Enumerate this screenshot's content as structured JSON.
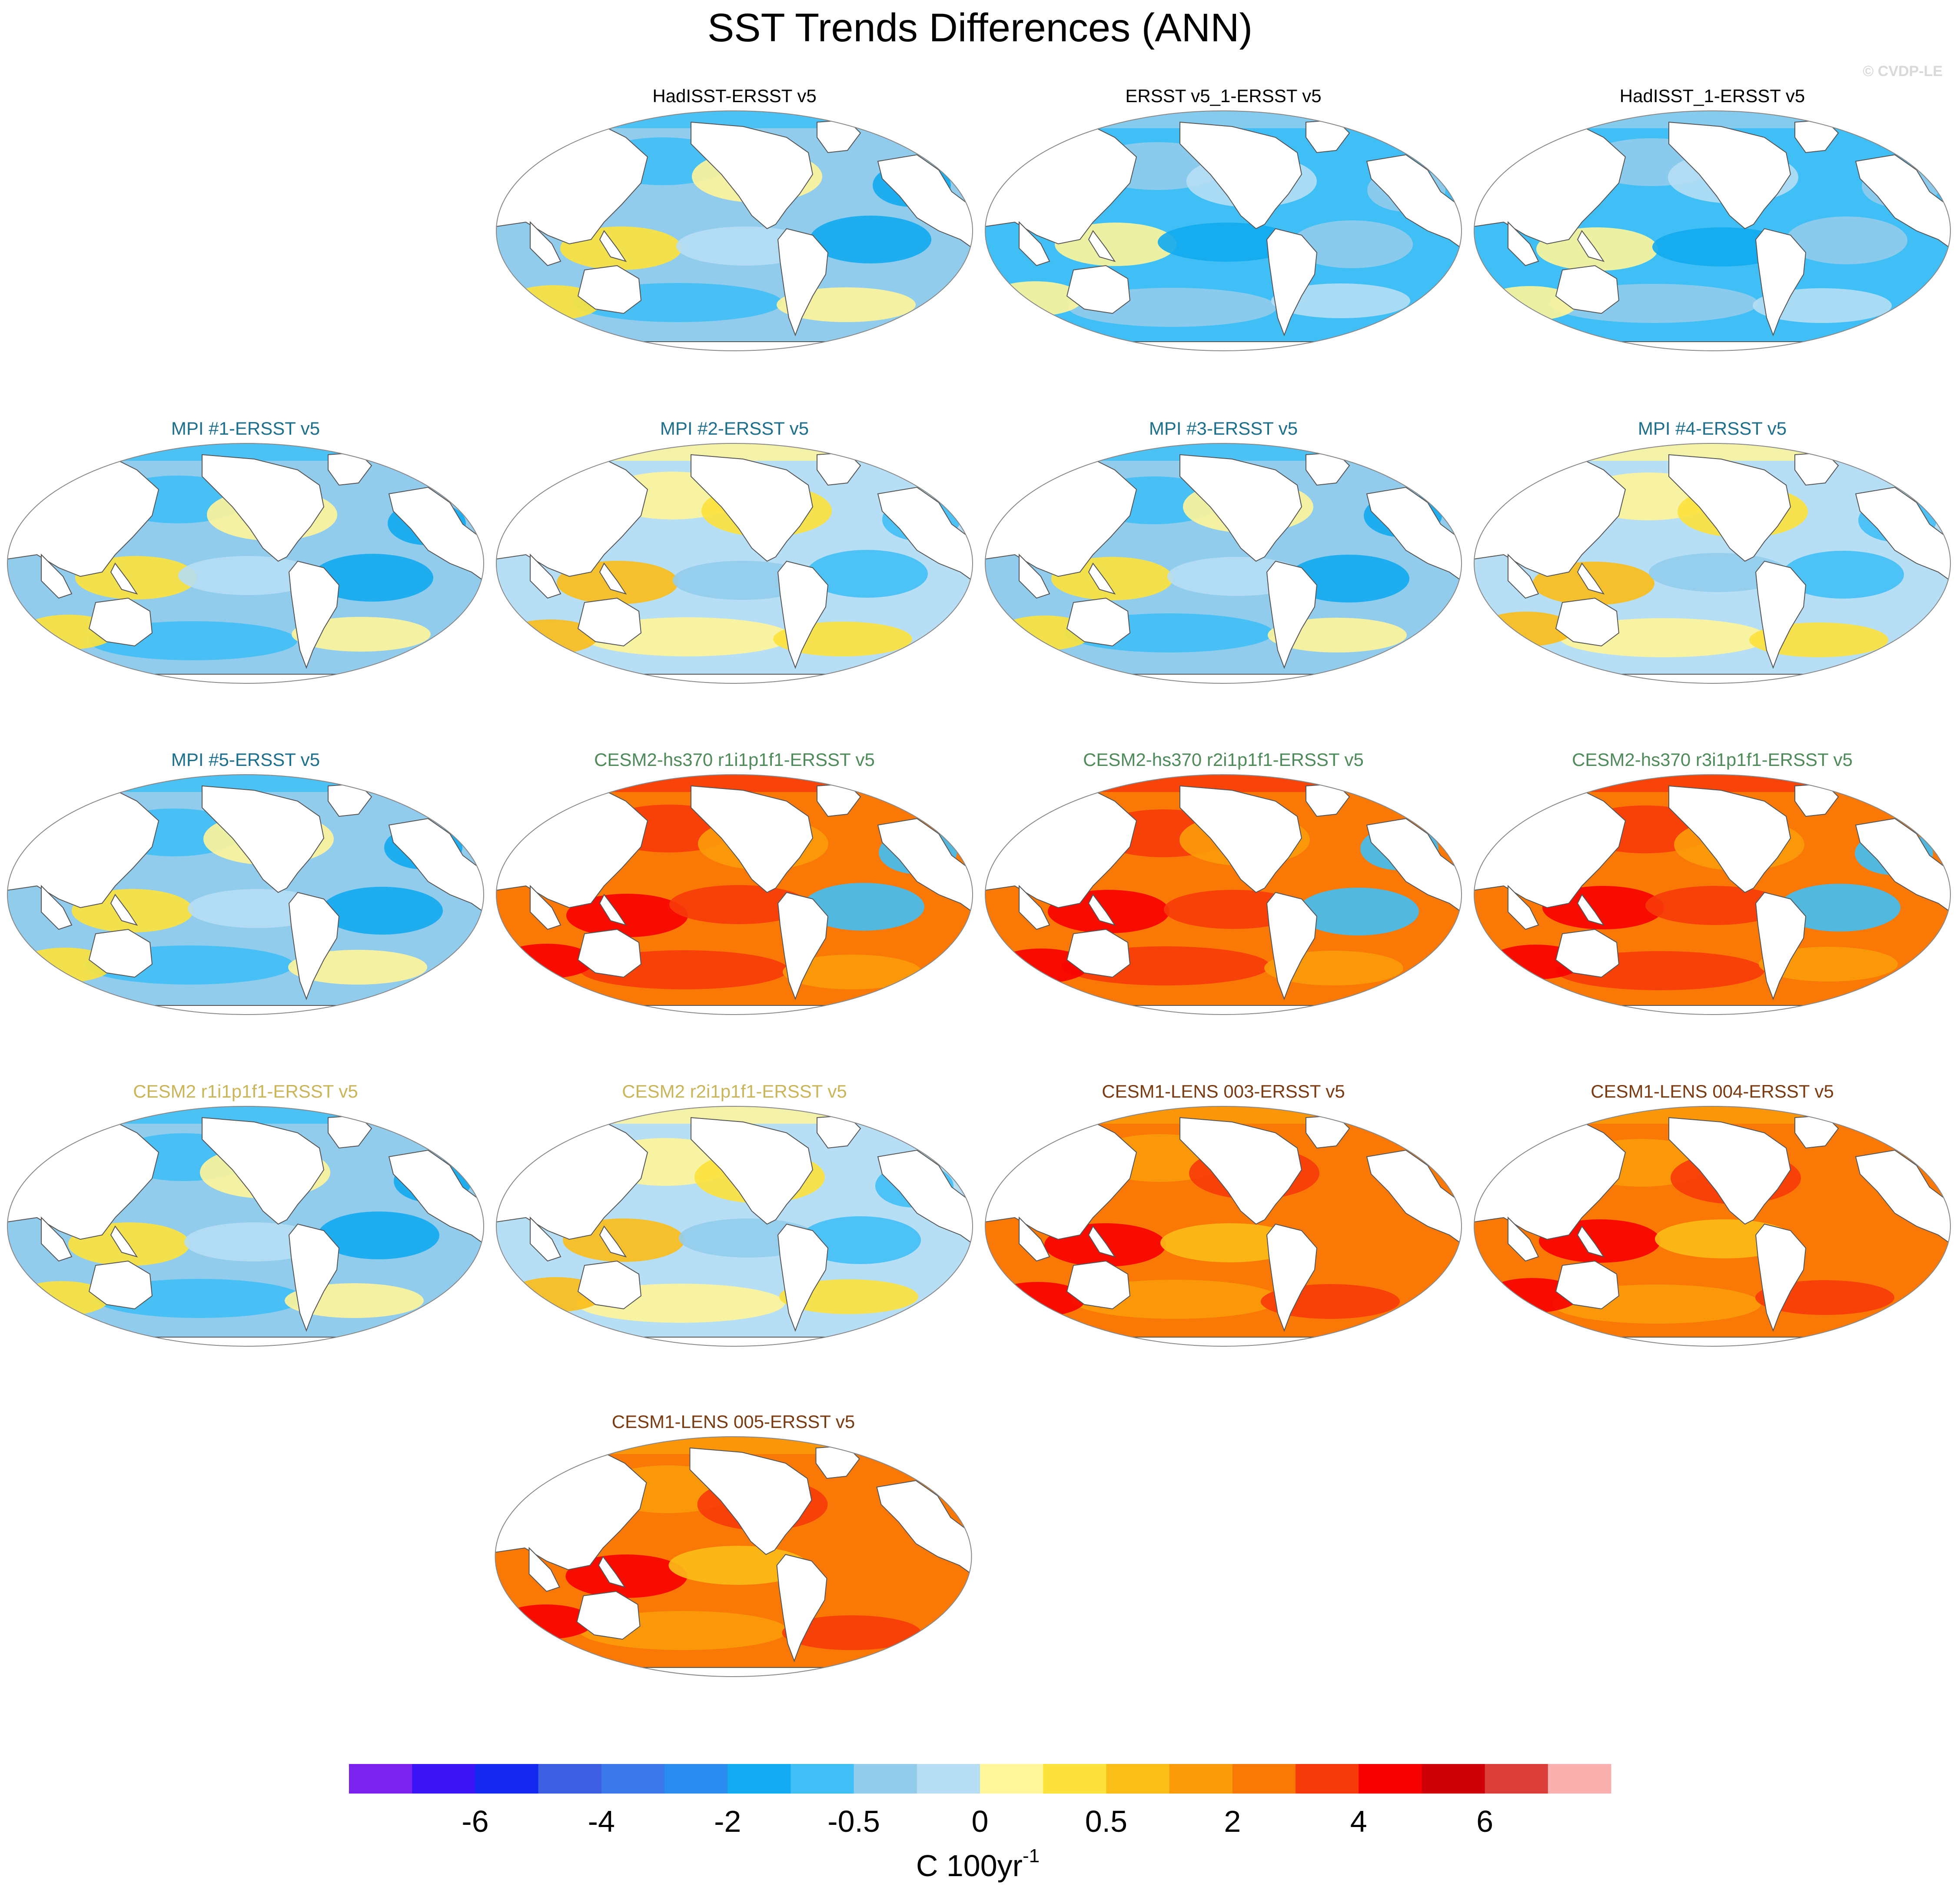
{
  "figure": {
    "title": "SST Trends Differences (ANN)",
    "copyright": "© CVDP-LE"
  },
  "colors": {
    "obs_title": "#000000",
    "mpi_title": "#1e6f8c",
    "cesm2_hs370_title": "#4e8a5a",
    "cesm2_title": "#c9b55a",
    "cesm1_lens_title": "#7a3a12",
    "land": "#ffffff",
    "coast": "#555555"
  },
  "panels": [
    {
      "title": "HadISST-ERSST v5",
      "group": "obs",
      "tone": "cool_mixed",
      "row": 0,
      "col": 1
    },
    {
      "title": "ERSST v5_1-ERSST v5",
      "group": "obs",
      "tone": "cool",
      "row": 0,
      "col": 2
    },
    {
      "title": "HadISST_1-ERSST v5",
      "group": "obs",
      "tone": "cool",
      "row": 0,
      "col": 3
    },
    {
      "title": "MPI #1-ERSST v5",
      "group": "mpi",
      "tone": "cool_mixed",
      "row": 1,
      "col": 0
    },
    {
      "title": "MPI #2-ERSST v5",
      "group": "mpi",
      "tone": "mixed",
      "row": 1,
      "col": 1
    },
    {
      "title": "MPI #3-ERSST v5",
      "group": "mpi",
      "tone": "cool_mixed",
      "row": 1,
      "col": 2
    },
    {
      "title": "MPI #4-ERSST v5",
      "group": "mpi",
      "tone": "mixed",
      "row": 1,
      "col": 3
    },
    {
      "title": "MPI #5-ERSST v5",
      "group": "mpi",
      "tone": "cool_mixed",
      "row": 2,
      "col": 0
    },
    {
      "title": "CESM2-hs370 r1i1p1f1-ERSST v5",
      "group": "cesm2_hs370",
      "tone": "warm",
      "row": 2,
      "col": 1
    },
    {
      "title": "CESM2-hs370 r2i1p1f1-ERSST v5",
      "group": "cesm2_hs370",
      "tone": "warm",
      "row": 2,
      "col": 2
    },
    {
      "title": "CESM2-hs370 r3i1p1f1-ERSST v5",
      "group": "cesm2_hs370",
      "tone": "warm",
      "row": 2,
      "col": 3
    },
    {
      "title": "CESM2 r1i1p1f1-ERSST v5",
      "group": "cesm2",
      "tone": "cool_mixed",
      "row": 3,
      "col": 0
    },
    {
      "title": "CESM2 r2i1p1f1-ERSST v5",
      "group": "cesm2",
      "tone": "mixed",
      "row": 3,
      "col": 1
    },
    {
      "title": "CESM1-LENS 003-ERSST v5",
      "group": "cesm1_lens",
      "tone": "warm2",
      "row": 3,
      "col": 2
    },
    {
      "title": "CESM1-LENS 004-ERSST v5",
      "group": "cesm1_lens",
      "tone": "warm2",
      "row": 3,
      "col": 3
    },
    {
      "title": "CESM1-LENS 005-ERSST v5",
      "group": "cesm1_lens",
      "tone": "warm2",
      "row": 4,
      "col": 1.5
    }
  ],
  "colorbar": {
    "colors": [
      "#7b22ee",
      "#3a14f5",
      "#1428f0",
      "#3c5ee0",
      "#3a78ec",
      "#2a8cf0",
      "#12aaf0",
      "#40bff6",
      "#92ccec",
      "#b6def4",
      "#fff59a",
      "#fde23c",
      "#fbbd18",
      "#fb9b0a",
      "#fa7806",
      "#f73a0a",
      "#f70000",
      "#cc0006",
      "#dc3e3a",
      "#fbb0b0"
    ],
    "tick_labels": [
      "-6",
      "-4",
      "-2",
      "-0.5",
      "0",
      "0.5",
      "2",
      "4",
      "6"
    ],
    "tick_after_box": [
      1,
      3,
      5,
      7,
      9,
      11,
      13,
      15,
      17
    ],
    "unit_label": "C 100yr",
    "unit_exponent": "-1"
  }
}
